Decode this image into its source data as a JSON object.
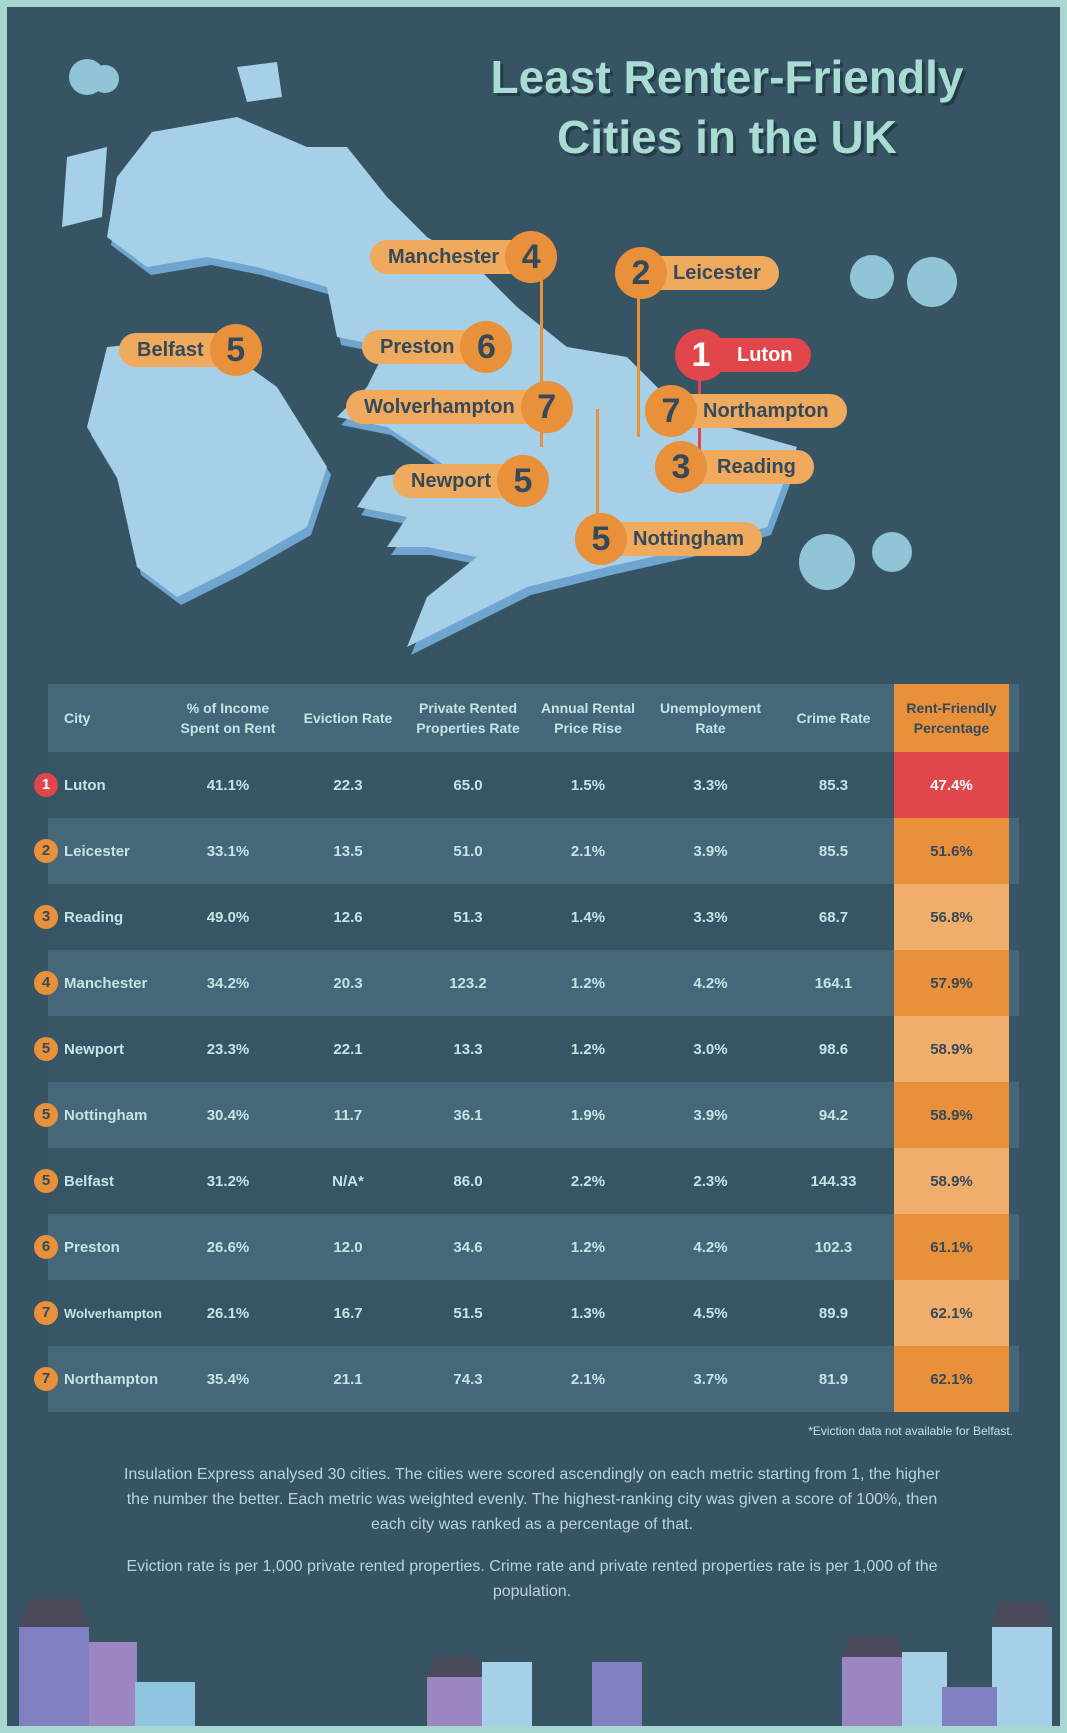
{
  "title": [
    "Least Renter-Friendly",
    "Cities in the UK"
  ],
  "pins": [
    {
      "city": "Manchester",
      "rank": "4"
    },
    {
      "city": "Leicester",
      "rank": "2"
    },
    {
      "city": "Belfast",
      "rank": "5"
    },
    {
      "city": "Preston",
      "rank": "6"
    },
    {
      "city": "Luton",
      "rank": "1"
    },
    {
      "city": "Wolverhampton",
      "rank": "7"
    },
    {
      "city": "Northampton",
      "rank": "7"
    },
    {
      "city": "Reading",
      "rank": "3"
    },
    {
      "city": "Newport",
      "rank": "5"
    },
    {
      "city": "Nottingham",
      "rank": "5"
    }
  ],
  "table": {
    "headers": [
      "City",
      "% of Income Spent on Rent",
      "Eviction Rate",
      "Private Rented Properties Rate",
      "Annual Rental Price Rise",
      "Unemployment Rate",
      "Crime Rate",
      "Rent-Friendly Percentage"
    ],
    "rows": [
      [
        "1",
        "Luton",
        "41.1%",
        "22.3",
        "65.0",
        "1.5%",
        "3.3%",
        "85.3",
        "47.4%"
      ],
      [
        "2",
        "Leicester",
        "33.1%",
        "13.5",
        "51.0",
        "2.1%",
        "3.9%",
        "85.5",
        "51.6%"
      ],
      [
        "3",
        "Reading",
        "49.0%",
        "12.6",
        "51.3",
        "1.4%",
        "3.3%",
        "68.7",
        "56.8%"
      ],
      [
        "4",
        "Manchester",
        "34.2%",
        "20.3",
        "123.2",
        "1.2%",
        "4.2%",
        "164.1",
        "57.9%"
      ],
      [
        "5",
        "Newport",
        "23.3%",
        "22.1",
        "13.3",
        "1.2%",
        "3.0%",
        "98.6",
        "58.9%"
      ],
      [
        "5",
        "Nottingham",
        "30.4%",
        "11.7",
        "36.1",
        "1.9%",
        "3.9%",
        "94.2",
        "58.9%"
      ],
      [
        "5",
        "Belfast",
        "31.2%",
        "N/A*",
        "86.0",
        "2.2%",
        "2.3%",
        "144.33",
        "58.9%"
      ],
      [
        "6",
        "Preston",
        "26.6%",
        "12.0",
        "34.6",
        "1.2%",
        "4.2%",
        "102.3",
        "61.1%"
      ],
      [
        "7",
        "Wolverhampton",
        "26.1%",
        "16.7",
        "51.5",
        "1.3%",
        "4.5%",
        "89.9",
        "62.1%"
      ],
      [
        "7",
        "Northampton",
        "35.4%",
        "21.1",
        "74.3",
        "2.1%",
        "3.7%",
        "81.9",
        "62.1%"
      ]
    ],
    "footnote": "*Eviction data not available for Belfast."
  },
  "notes": [
    "Insulation Express analysed 30 cities. The cities were scored ascendingly on each metric starting from 1, the higher the number the better. Each metric was weighted evenly. The highest-ranking city was given a score of 100%, then each city was ranked as a percentage of that.",
    "Eviction rate is per 1,000 private rented properties. Crime rate and private rented properties rate is per 1,000 of the population."
  ],
  "colors": {
    "red": "#e0464a",
    "orange_dark": "#e8913a",
    "orange_light": "#efae6c"
  }
}
